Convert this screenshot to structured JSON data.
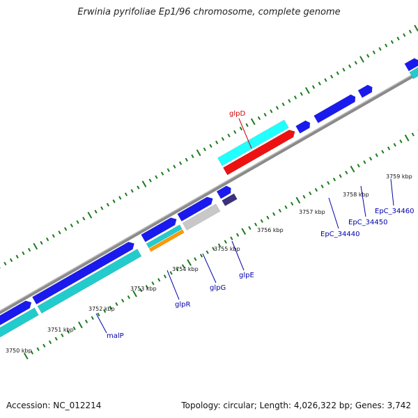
{
  "title": "Erwinia pyrifoliae Ep1/96 chromosome, complete genome",
  "accession": "Accession: NC_012214",
  "info": "Topology: circular; Length: 4,026,322 bp; Genes: 3,742",
  "colors": {
    "gene_blue": "#1a1aee",
    "cds_cyan": "#22cccc",
    "highlight_red": "#ee1111",
    "highlight_cyan": "#22ffff",
    "orange": "#ff9900",
    "grey": "#c8c8c8",
    "dark_purple": "#3a327a",
    "tick_green": "#1a7a1a",
    "label_blue": "#0000aa",
    "label_red": "#cc0000"
  },
  "scale": {
    "ticks": [
      {
        "label": "3750 kbp"
      },
      {
        "label": "3751 kbp"
      },
      {
        "label": "3752 kbp"
      },
      {
        "label": "3753 kbp"
      },
      {
        "label": "3754 kbp"
      },
      {
        "label": "3755 kbp"
      },
      {
        "label": "3756 kbp"
      },
      {
        "label": "3757 kbp"
      },
      {
        "label": "3758 kbp"
      },
      {
        "label": "3759 kbp"
      }
    ]
  },
  "genes": [
    {
      "label": "malP",
      "highlight": false
    },
    {
      "label": "glpR",
      "highlight": false
    },
    {
      "label": "glpG",
      "highlight": false
    },
    {
      "label": "glpE",
      "highlight": false
    },
    {
      "label": "glpD",
      "highlight": true
    },
    {
      "label": "EpC_34440",
      "highlight": false
    },
    {
      "label": "EpC_34450",
      "highlight": false
    },
    {
      "label": "EpC_34460",
      "highlight": false
    }
  ]
}
